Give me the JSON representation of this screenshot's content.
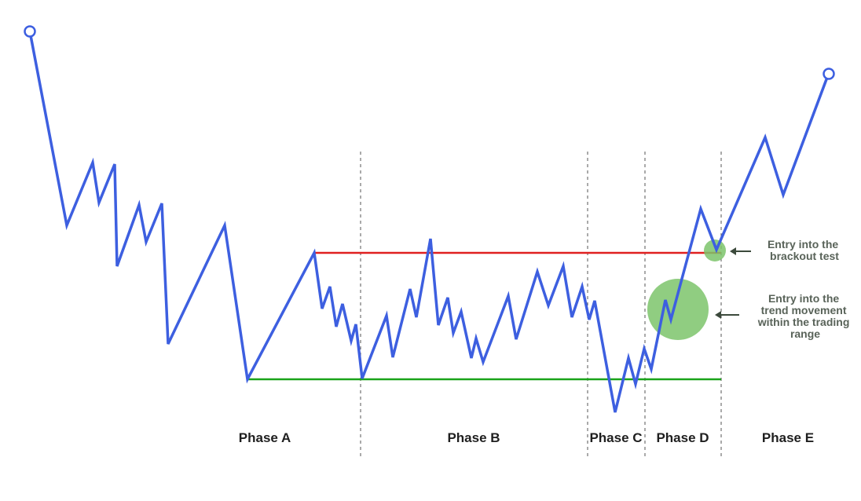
{
  "phases": [
    {
      "label": "Phase A"
    },
    {
      "label": "Phase B"
    },
    {
      "label": "Phase C"
    },
    {
      "label": "Phase D"
    },
    {
      "label": "Phase E"
    }
  ],
  "annotations": [
    {
      "lines": [
        "Entry into the",
        "brackout test"
      ]
    },
    {
      "lines": [
        "Entry into the",
        "trend movement",
        "within the trading",
        "range"
      ]
    }
  ],
  "colors": {
    "price_line": "#3d5fe0",
    "resistance": "#e02020",
    "support": "#1aa31a",
    "entry_marker": "#7cc46b",
    "arrow": "#3c4a3c",
    "divider": "#555555"
  },
  "icons": {
    "start_point": "hollow-circle",
    "end_point": "hollow-circle",
    "pointer": "left-arrow"
  }
}
